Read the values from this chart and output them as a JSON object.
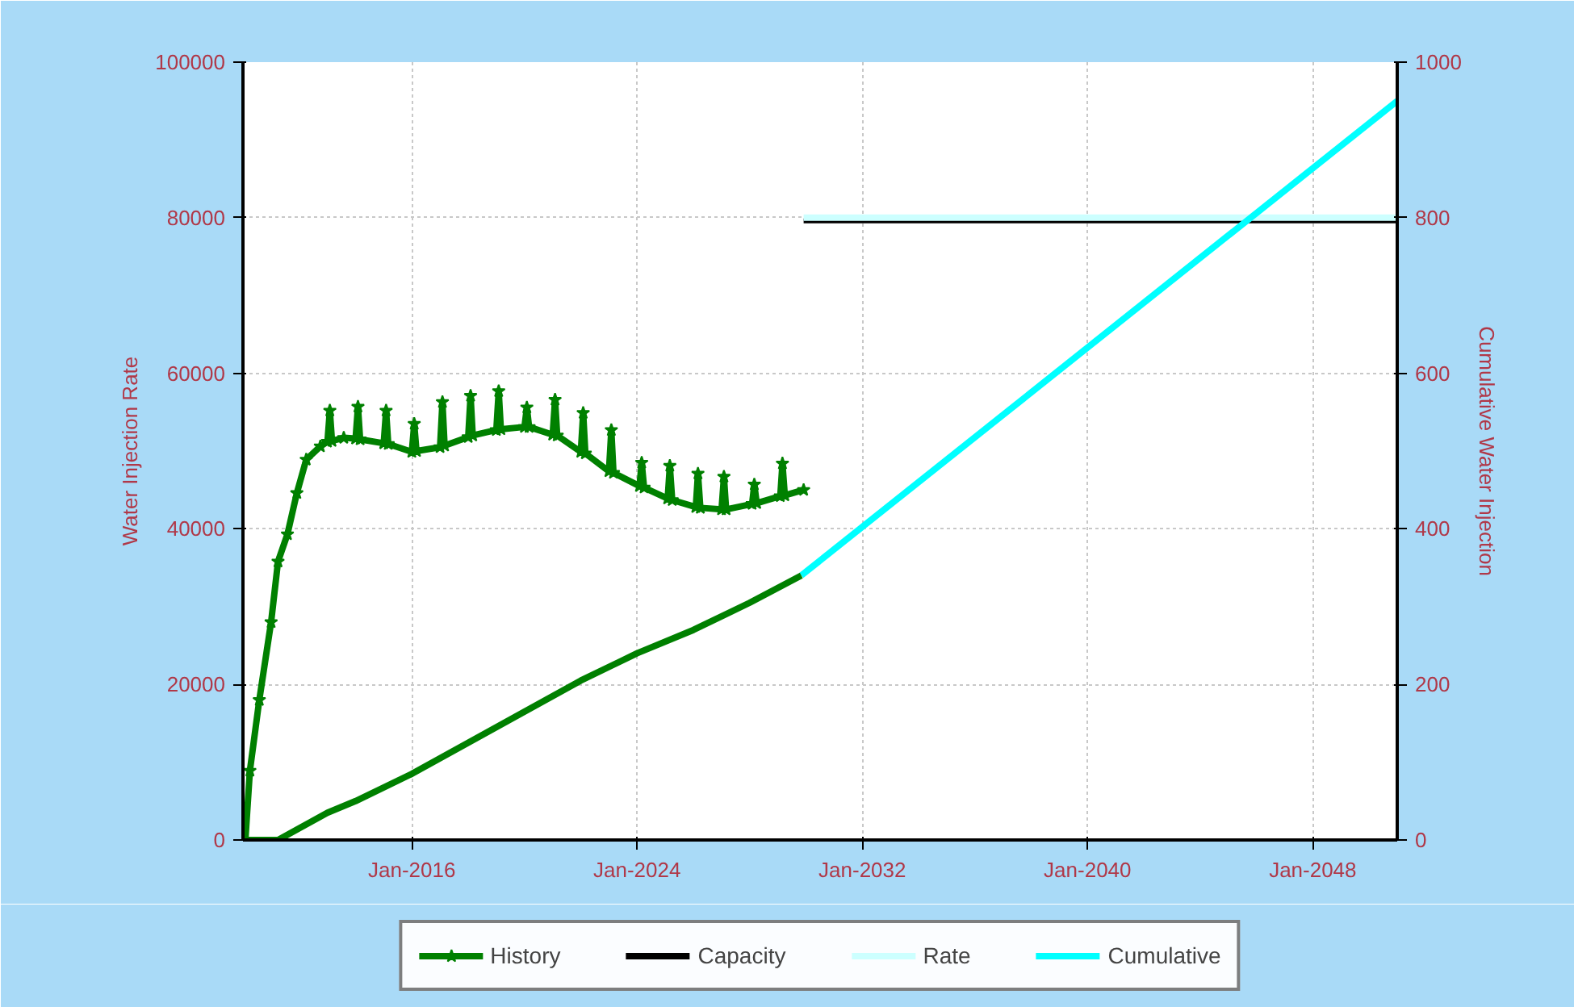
{
  "chart_data": {
    "type": "line",
    "ylabel": "Water Injection Rate",
    "y2label": "Cumulative Water Injection",
    "xlim": [
      "2010-01",
      "2051-01"
    ],
    "xticks": [
      {
        "value": "2016-01",
        "label": "Jan-2016"
      },
      {
        "value": "2024-01",
        "label": "Jan-2024"
      },
      {
        "value": "2032-01",
        "label": "Jan-2032"
      },
      {
        "value": "2040-01",
        "label": "Jan-2040"
      },
      {
        "value": "2048-01",
        "label": "Jan-2048"
      }
    ],
    "ylim": [
      0,
      100000
    ],
    "yticks": [
      0,
      20000,
      40000,
      60000,
      80000,
      100000
    ],
    "y2lim": [
      0,
      1000
    ],
    "y2ticks": [
      0,
      200,
      400,
      600,
      800,
      1000
    ],
    "grid": true,
    "legend": "bottom",
    "series": [
      {
        "name": "History",
        "color": "#008000",
        "marker": "star",
        "x": [
          "2010-02",
          "2010-04",
          "2010-08",
          "2011-01",
          "2011-04",
          "2011-08",
          "2011-12",
          "2012-04",
          "2012-10",
          "2013-01",
          "2013-02",
          "2013-03",
          "2013-08",
          "2014-01",
          "2014-02",
          "2014-03",
          "2015-01",
          "2015-02",
          "2015-03",
          "2016-01",
          "2016-02",
          "2016-03",
          "2017-01",
          "2017-02",
          "2017-03",
          "2018-01",
          "2018-02",
          "2018-03",
          "2019-01",
          "2019-02",
          "2019-03",
          "2020-01",
          "2020-02",
          "2020-03",
          "2021-01",
          "2021-02",
          "2021-03",
          "2022-01",
          "2022-02",
          "2022-03",
          "2023-01",
          "2023-02",
          "2023-03",
          "2024-02",
          "2024-03",
          "2024-04",
          "2025-02",
          "2025-03",
          "2025-04",
          "2026-02",
          "2026-03",
          "2026-04",
          "2027-01",
          "2027-02",
          "2027-03",
          "2028-02",
          "2028-03",
          "2028-04",
          "2029-02",
          "2029-03",
          "2029-04",
          "2029-12"
        ],
        "values": [
          0,
          8900,
          18000,
          28000,
          35800,
          39300,
          44600,
          48900,
          50600,
          51200,
          55200,
          51300,
          51700,
          51600,
          55700,
          51500,
          51000,
          55200,
          50900,
          49900,
          53500,
          50000,
          50500,
          56300,
          50700,
          51800,
          57100,
          52000,
          52700,
          57700,
          52800,
          53100,
          55600,
          53100,
          52100,
          56600,
          52000,
          49900,
          54900,
          49700,
          47400,
          52700,
          47200,
          45500,
          48500,
          45300,
          43900,
          48100,
          43700,
          42800,
          47100,
          42700,
          42500,
          46700,
          42500,
          43200,
          45700,
          43300,
          44200,
          48400,
          44300,
          45000
        ]
      },
      {
        "name": "Capacity",
        "color": "#000000",
        "x": [
          "2029-12",
          "2051-01"
        ],
        "values": [
          79600,
          79600
        ]
      },
      {
        "name": "Rate",
        "color": "#ccffff",
        "x": [
          "2029-12",
          "2051-01"
        ],
        "values": [
          80000,
          80000
        ]
      },
      {
        "name": "Cumulative",
        "color": "#00ffff",
        "axis": "y2",
        "x": [
          "2029-11",
          "2051-01"
        ],
        "values": [
          340,
          950
        ]
      },
      {
        "color": "#008000",
        "axis": "y2",
        "x": [
          "2010-03",
          "2011-04",
          "2012-01",
          "2013-01",
          "2014-01",
          "2016-01",
          "2018-01",
          "2020-01",
          "2022-01",
          "2024-01",
          "2026-01",
          "2028-01",
          "2029-11"
        ],
        "values": [
          0,
          0,
          15,
          35,
          50,
          85,
          125,
          165,
          205,
          240,
          270,
          305,
          340
        ]
      }
    ]
  }
}
